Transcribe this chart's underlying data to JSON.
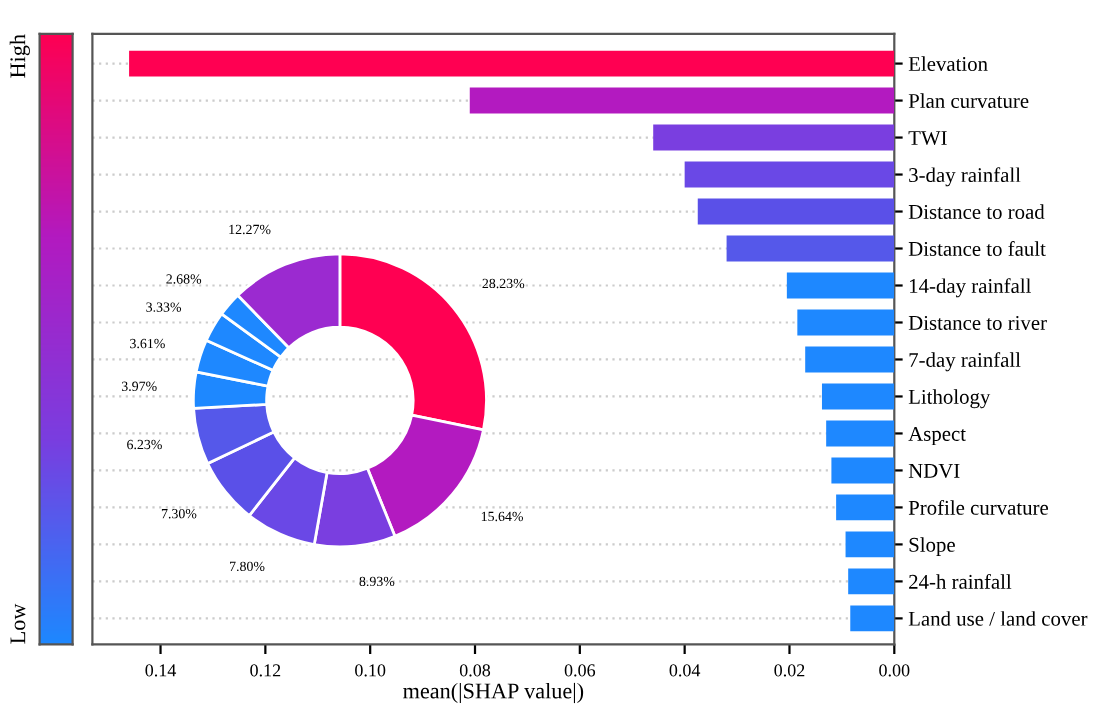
{
  "chart_data": [
    {
      "type": "bar",
      "orientation": "horizontal",
      "xlabel": "mean(|SHAP value|)",
      "categories": [
        "Elevation",
        "Plan curvature",
        "TWI",
        "3-day rainfall",
        "Distance to road",
        "Distance to fault",
        "14-day rainfall",
        "Distance to river",
        "7-day rainfall",
        "Lithology",
        "Aspect",
        "NDVI",
        "Profile curvature",
        "Slope",
        "24-h rainfall",
        "Land use / land cover"
      ],
      "values": [
        0.146,
        0.081,
        0.046,
        0.04,
        0.0375,
        0.032,
        0.0205,
        0.0185,
        0.017,
        0.0138,
        0.013,
        0.012,
        0.0111,
        0.0093,
        0.0088,
        0.0084
      ],
      "colors": [
        "#ff0052",
        "#b31ac0",
        "#7a3ee0",
        "#6a48e6",
        "#5a50e8",
        "#5558ea",
        "#1e88ff",
        "#1e88ff",
        "#1e88ff",
        "#1e88ff",
        "#1e88ff",
        "#1e88ff",
        "#1e88ff",
        "#1e88ff",
        "#1e88ff",
        "#1e88ff"
      ],
      "xlim": [
        0.153,
        0
      ],
      "xticks": [
        {
          "value": 0.14,
          "label": "0.14"
        },
        {
          "value": 0.12,
          "label": "0.12"
        },
        {
          "value": 0.1,
          "label": "0.10"
        },
        {
          "value": 0.08,
          "label": "0.08"
        },
        {
          "value": 0.06,
          "label": "0.06"
        },
        {
          "value": 0.04,
          "label": "0.04"
        },
        {
          "value": 0.02,
          "label": "0.02"
        },
        {
          "value": 0,
          "label": "0.00"
        }
      ],
      "grid": "y",
      "legend": false,
      "annotations": [
        "High",
        "Low"
      ]
    },
    {
      "type": "donut",
      "categories": [
        null,
        null,
        null,
        null,
        null,
        null,
        null,
        null,
        null,
        null,
        null
      ],
      "values": [
        28.23,
        15.64,
        8.93,
        7.8,
        7.3,
        6.23,
        3.97,
        3.61,
        3.33,
        2.68,
        12.27
      ],
      "colors": [
        "#ff0052",
        "#b31ac0",
        "#7a3ee0",
        "#6a48e6",
        "#5a50e8",
        "#5558ea",
        "#1e88ff",
        "#1e88ff",
        "#1e88ff",
        "#1e88ff",
        "#9b2ad0"
      ],
      "value_labels": [
        "28.23%",
        "15.64%",
        "8.93%",
        "7.80%",
        "7.30%",
        "6.23%",
        "3.97%",
        "3.61%",
        "3.33%",
        "2.68%",
        "12.27%"
      ]
    }
  ]
}
